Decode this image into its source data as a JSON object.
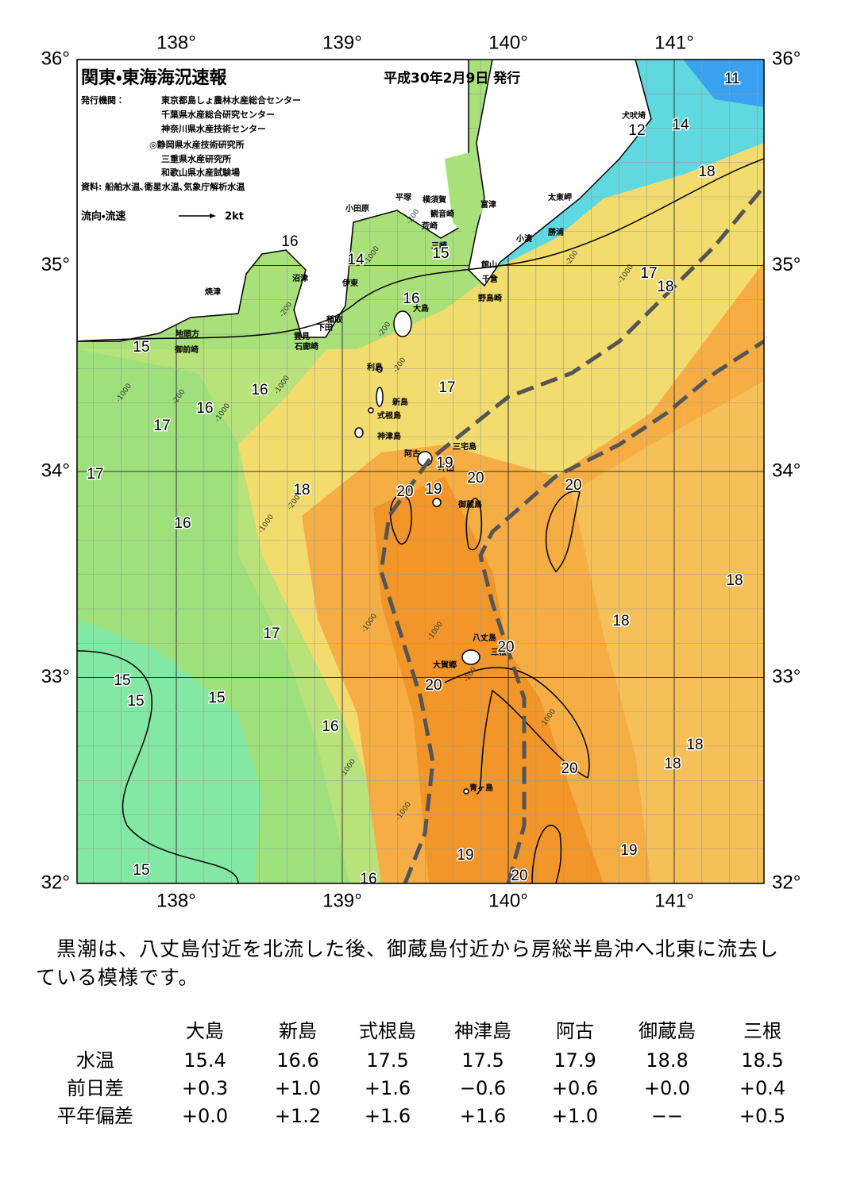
{
  "map": {
    "title": "関東・東海海況速報",
    "issued": "平成30年2月9日 発行",
    "publisher_label": "発行機関：",
    "publishers": [
      "東京都島しょ農林水産総合センター",
      "千葉県水産総合研究センター",
      "神奈川県水産技術センター",
      "◎静岡県水産技術研究所",
      "三重県水産研究所",
      "和歌山県水産試験場"
    ],
    "sources": "資料: 船舶水温､衛星水温､気象庁解析水温",
    "legend": {
      "label": "流向・流速",
      "speed": "2kt"
    },
    "lon_labels": [
      "138°",
      "139°",
      "140°",
      "141°"
    ],
    "lat_labels": [
      "36°",
      "35°",
      "34°",
      "33°",
      "32°"
    ],
    "places": [
      "犬吠埼",
      "太東岬",
      "勝浦",
      "小湊",
      "富津",
      "横須賀",
      "観音崎",
      "荒崎",
      "平塚",
      "小田原",
      "三崎",
      "館山",
      "千倉",
      "野島崎",
      "沼津",
      "焼津",
      "伊東",
      "大島",
      "稲取",
      "下田",
      "雲見",
      "石廊崎",
      "地頭方",
      "御前崎",
      "利島",
      "新島",
      "式根島",
      "神津島",
      "三宅島",
      "阿古",
      "坪田",
      "御蔵島",
      "八丈島",
      "三根",
      "大賀郷",
      "青ヶ島"
    ],
    "contour_labels": [
      "11",
      "12",
      "14",
      "18",
      "17",
      "18",
      "16",
      "14",
      "15",
      "16",
      "15",
      "16",
      "17",
      "16",
      "17",
      "17",
      "19",
      "20",
      "18",
      "20",
      "19",
      "20",
      "16",
      "18",
      "18",
      "17",
      "20",
      "15",
      "15",
      "15",
      "20",
      "16",
      "18",
      "18",
      "20",
      "19",
      "19",
      "15",
      "16",
      "20"
    ],
    "depth_labels": [
      "-200",
      "-200",
      "-1000",
      "-1000",
      "-200",
      "-200",
      "-1000",
      "-1000",
      "-200",
      "-1000",
      "-200",
      "-200",
      "-1000",
      "-1000",
      "-1000",
      "-200",
      "-1000",
      "-1000",
      "-1000"
    ]
  },
  "description": "黒潮は、八丈島付近を北流した後、御蔵島付近から房総半島沖へ北東に流去している模様です。",
  "table": {
    "columns": [
      "大島",
      "新島",
      "式根島",
      "神津島",
      "阿古",
      "御蔵島",
      "三根"
    ],
    "rows": [
      [
        "水温",
        "15.4",
        "16.6",
        "17.5",
        "17.5",
        "17.9",
        "18.8",
        "18.5"
      ],
      [
        "前日差",
        "+0.3",
        "+1.0",
        "+1.6",
        "−0.6",
        "+0.6",
        "+0.0",
        "+0.4"
      ],
      [
        "平年偏差",
        "+0.0",
        "+1.2",
        "+1.6",
        "+1.6",
        "+1.0",
        "−−",
        "+0.5"
      ]
    ]
  }
}
